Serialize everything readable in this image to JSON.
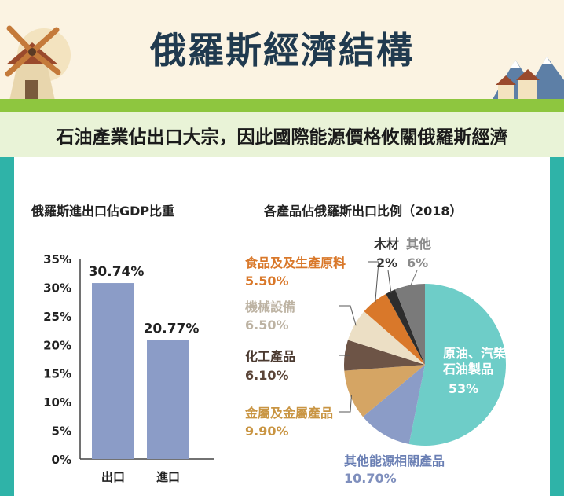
{
  "page": {
    "title": "俄羅斯經濟結構",
    "subtitle": "石油產業佔出口大宗，因此國際能源價格攸關俄羅斯經濟"
  },
  "chart_data": [
    {
      "type": "bar",
      "title": "俄羅斯進出口佔GDP比重",
      "categories": [
        "出口",
        "進口"
      ],
      "values": [
        30.74,
        20.77
      ],
      "value_labels": [
        "30.74%",
        "20.77%"
      ],
      "ylim": [
        0,
        35
      ],
      "yticks": [
        "0%",
        "5%",
        "10%",
        "15%",
        "20%",
        "25%",
        "30%",
        "35%"
      ],
      "bar_color": "#8b9cc7"
    },
    {
      "type": "pie",
      "title": "各產品佔俄羅斯出口比例（2018）",
      "slices": [
        {
          "label": "原油、汽柴油及石油製品",
          "value": 53,
          "text": "53%",
          "color": "#6ecdc8",
          "text_color": "#ffffff"
        },
        {
          "label": "其他能源相關產品",
          "value": 10.7,
          "text": "10.70%",
          "color": "#8b9cc7",
          "text_color": "#7f8fbd"
        },
        {
          "label": "金屬及金屬產品",
          "value": 9.9,
          "text": "9.90%",
          "color": "#d5a564",
          "text_color": "#c99543"
        },
        {
          "label": "化工產品",
          "value": 6.1,
          "text": "6.10%",
          "color": "#6d5446",
          "text_color": "#5b4538"
        },
        {
          "label": "機械設備",
          "value": 6.5,
          "text": "6.50%",
          "color": "#ecdfc5",
          "text_color": "#bdb3a3"
        },
        {
          "label": "食品及及生產原料",
          "value": 5.5,
          "text": "5.50%",
          "color": "#d9782a",
          "text_color": "#d9782a"
        },
        {
          "label": "木材",
          "value": 2,
          "text": "2%",
          "color": "#2d2d2d",
          "text_color": "#333333"
        },
        {
          "label": "其他",
          "value": 6,
          "text": "6%",
          "color": "#7a7a7a",
          "text_color": "#8a8a8a"
        }
      ]
    }
  ]
}
